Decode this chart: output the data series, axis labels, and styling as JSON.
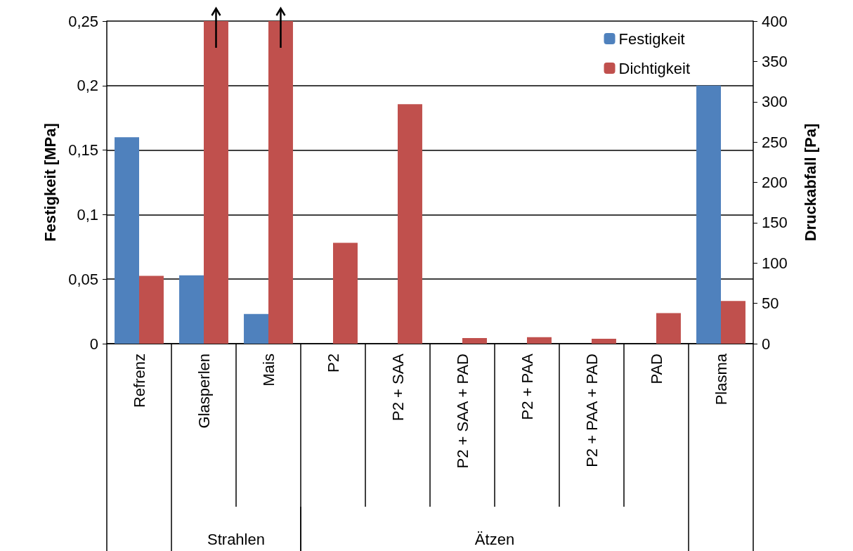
{
  "chart_data": {
    "type": "bar",
    "ylabel": "Festigkeit [MPa]",
    "y2label": "Druckabfall [Pa]",
    "categories": [
      "Refrenz",
      "Glasperlen",
      "Mais",
      "P2",
      "P2 + SAA",
      "P2 + SAA + PAD",
      "P2 + PAA",
      "P2 + PAA + PAD",
      "PAD",
      "Plasma"
    ],
    "series": [
      {
        "name": "Festigkeit",
        "color": "#4f81bd",
        "values": [
          0.16,
          0.053,
          0.023,
          null,
          null,
          null,
          null,
          null,
          null,
          0.2
        ]
      },
      {
        "name": "Dichtigkeit",
        "color": "#c0504d",
        "axis": "y2",
        "values": [
          84,
          400,
          400,
          125,
          297,
          7,
          8,
          6,
          38,
          53
        ]
      }
    ],
    "ylim": [
      0,
      0.25
    ],
    "yticks": [
      {
        "value": 0,
        "label": "0"
      },
      {
        "value": 0.05,
        "label": "0,05"
      },
      {
        "value": 0.1,
        "label": "0,1"
      },
      {
        "value": 0.15,
        "label": "0,15"
      },
      {
        "value": 0.2,
        "label": "0,2"
      },
      {
        "value": 0.25,
        "label": "0,25"
      }
    ],
    "y2lim": [
      0,
      400
    ],
    "y2ticks": [
      0,
      50,
      100,
      150,
      200,
      250,
      300,
      350,
      400
    ],
    "annotations": [
      "Strahlen",
      "Ätzen"
    ],
    "grid": "y",
    "legend": "top right"
  }
}
